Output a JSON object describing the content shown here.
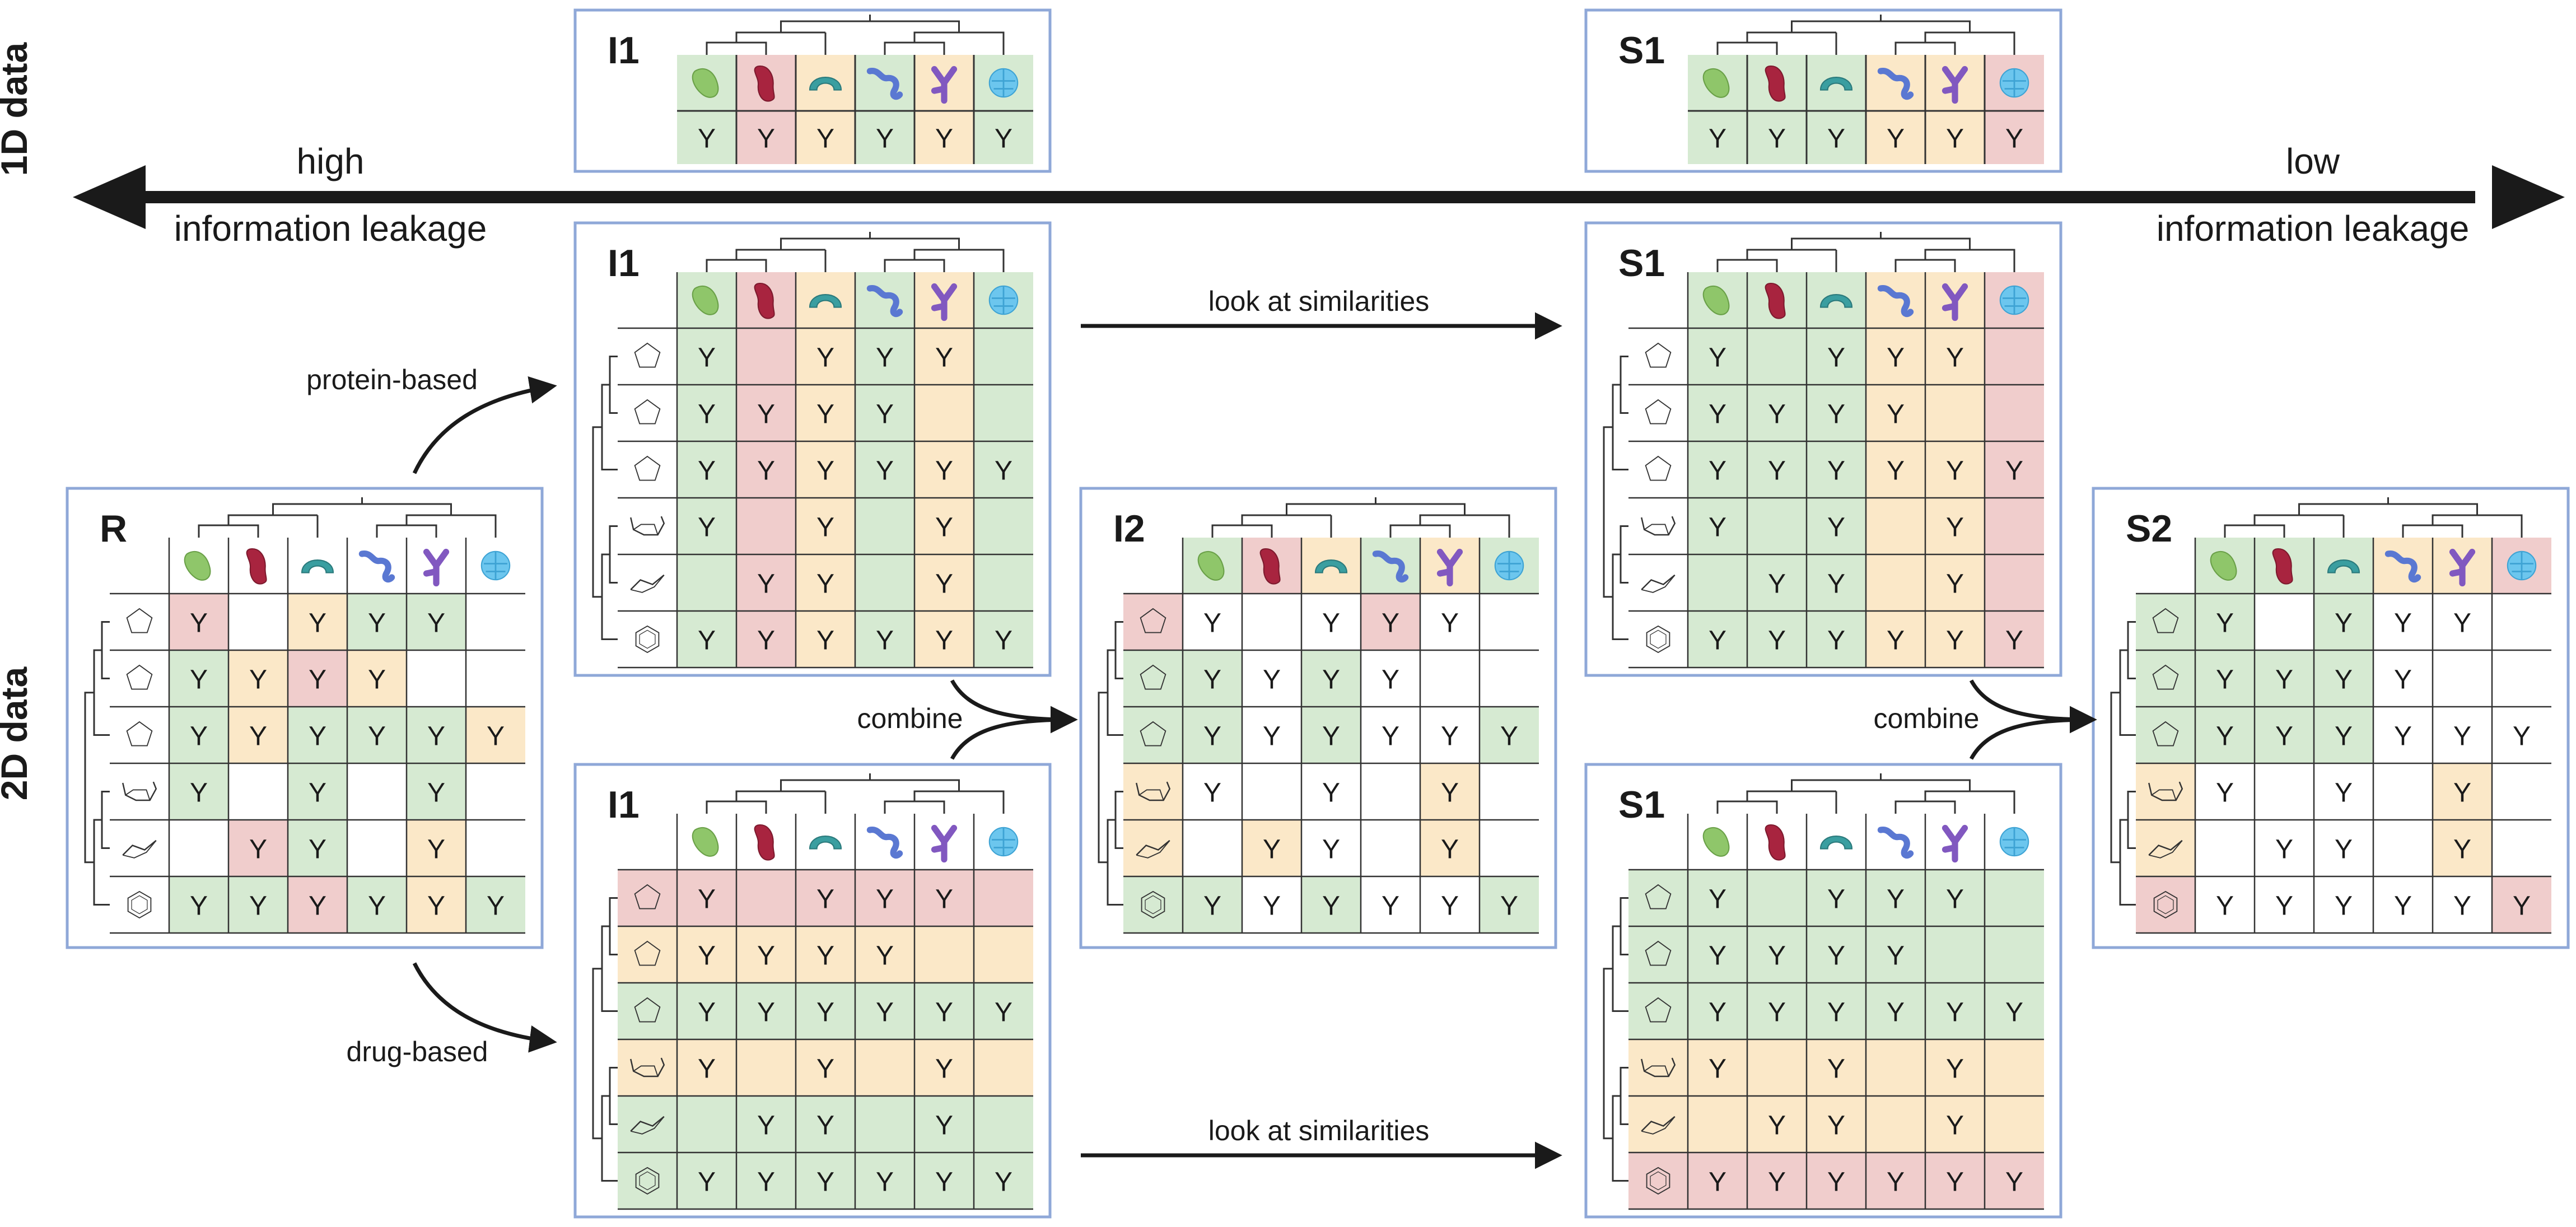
{
  "axis_labels": {
    "one_d": "1D data",
    "two_d": "2D data"
  },
  "leakage": {
    "high": "high",
    "low": "low",
    "high_desc": "information leakage",
    "low_desc": "information leakage"
  },
  "arrow_labels": {
    "protein_based": "protein-based",
    "drug_based": "drug-based",
    "similarities_top": "look at similarities",
    "similarities_bottom": "look at similarities",
    "combine_left": "combine",
    "combine_right": "combine"
  },
  "mark": "Y",
  "colors": {
    "G": "#d6ead2",
    "R": "#f0cdcc",
    "O": "#fbe8c8",
    "W": "#ffffff",
    "frame": "#8fa8d8",
    "arrow": "#1a1a1a"
  },
  "protein_icons": [
    "green-bean-protein-icon",
    "red-kidney-protein-icon",
    "teal-arc-protein-icon",
    "blue-chain-protein-icon",
    "purple-fork-protein-icon",
    "lightblue-globe-protein-icon"
  ],
  "drug_icons": [
    "cyclopentane-ring-icon",
    "cyclopentane-ring-icon",
    "cyclopentane-ring-icon",
    "chair-cyclohexane-icon",
    "flat-cyclohexane-icon",
    "benzene-ring-icon"
  ],
  "panels": [
    {
      "id": "one-d-i1",
      "label": "I1",
      "kind": "1d",
      "prot_colors": [
        "G",
        "R",
        "O",
        "G",
        "O",
        "G"
      ],
      "row_cells": [
        "Y",
        "Y",
        "Y",
        "Y",
        "Y",
        "Y"
      ]
    },
    {
      "id": "one-d-s1",
      "label": "S1",
      "kind": "1d",
      "prot_colors": [
        "G",
        "G",
        "G",
        "O",
        "O",
        "R"
      ],
      "row_cells": [
        "Y",
        "Y",
        "Y",
        "Y",
        "Y",
        "Y"
      ]
    },
    {
      "id": "two-d-r",
      "label": "R",
      "kind": "cell",
      "drug_colors": [],
      "prot_colors": [],
      "cells": [
        [
          "R",
          "W",
          "O",
          "G",
          "G",
          "W"
        ],
        [
          "G",
          "O",
          "R",
          "O",
          "W",
          "W"
        ],
        [
          "G",
          "O",
          "G",
          "G",
          "G",
          "O"
        ],
        [
          "G",
          "W",
          "G",
          "W",
          "G",
          "W"
        ],
        [
          "W",
          "R",
          "G",
          "W",
          "O",
          "W"
        ],
        [
          "G",
          "G",
          "R",
          "G",
          "O",
          "G"
        ]
      ],
      "marks": [
        [
          "Y",
          "",
          "Y",
          "Y",
          "Y",
          ""
        ],
        [
          "Y",
          "Y",
          "Y",
          "Y",
          "",
          ""
        ],
        [
          "Y",
          "Y",
          "Y",
          "Y",
          "Y",
          "Y"
        ],
        [
          "Y",
          "",
          "Y",
          "",
          "Y",
          ""
        ],
        [
          "",
          "Y",
          "Y",
          "",
          "Y",
          ""
        ],
        [
          "Y",
          "Y",
          "Y",
          "Y",
          "Y",
          "Y"
        ]
      ]
    },
    {
      "id": "two-d-i1-protein",
      "label": "I1",
      "kind": "column",
      "prot_colors": [
        "G",
        "R",
        "O",
        "G",
        "O",
        "G"
      ],
      "marks": [
        [
          "Y",
          "",
          "Y",
          "Y",
          "Y",
          ""
        ],
        [
          "Y",
          "Y",
          "Y",
          "Y",
          "",
          ""
        ],
        [
          "Y",
          "Y",
          "Y",
          "Y",
          "Y",
          "Y"
        ],
        [
          "Y",
          "",
          "Y",
          "",
          "Y",
          ""
        ],
        [
          "",
          "Y",
          "Y",
          "",
          "Y",
          ""
        ],
        [
          "Y",
          "Y",
          "Y",
          "Y",
          "Y",
          "Y"
        ]
      ]
    },
    {
      "id": "two-d-i1-drug",
      "label": "I1",
      "kind": "row",
      "drug_colors": [
        "R",
        "O",
        "G",
        "O",
        "G",
        "G"
      ],
      "marks": [
        [
          "Y",
          "",
          "Y",
          "Y",
          "Y",
          ""
        ],
        [
          "Y",
          "Y",
          "Y",
          "Y",
          "",
          ""
        ],
        [
          "Y",
          "Y",
          "Y",
          "Y",
          "Y",
          "Y"
        ],
        [
          "Y",
          "",
          "Y",
          "",
          "Y",
          ""
        ],
        [
          "",
          "Y",
          "Y",
          "",
          "Y",
          ""
        ],
        [
          "Y",
          "Y",
          "Y",
          "Y",
          "Y",
          "Y"
        ]
      ]
    },
    {
      "id": "two-d-i2",
      "label": "I2",
      "kind": "cell",
      "drug_colors": [
        "R",
        "G",
        "G",
        "O",
        "O",
        "G"
      ],
      "prot_colors": [
        "G",
        "R",
        "O",
        "G",
        "O",
        "G"
      ],
      "cells": [
        [
          "W",
          "W",
          "W",
          "R",
          "W",
          "W"
        ],
        [
          "G",
          "W",
          "G",
          "W",
          "W",
          "W"
        ],
        [
          "G",
          "W",
          "G",
          "W",
          "W",
          "G"
        ],
        [
          "W",
          "W",
          "W",
          "W",
          "O",
          "W"
        ],
        [
          "W",
          "O",
          "W",
          "W",
          "O",
          "W"
        ],
        [
          "G",
          "W",
          "G",
          "W",
          "W",
          "G"
        ]
      ],
      "marks": [
        [
          "Y",
          "",
          "Y",
          "Y",
          "Y",
          ""
        ],
        [
          "Y",
          "Y",
          "Y",
          "Y",
          "",
          ""
        ],
        [
          "Y",
          "Y",
          "Y",
          "Y",
          "Y",
          "Y"
        ],
        [
          "Y",
          "",
          "Y",
          "",
          "Y",
          ""
        ],
        [
          "",
          "Y",
          "Y",
          "",
          "Y",
          ""
        ],
        [
          "Y",
          "Y",
          "Y",
          "Y",
          "Y",
          "Y"
        ]
      ]
    },
    {
      "id": "two-d-s1-protein",
      "label": "S1",
      "kind": "column",
      "prot_colors": [
        "G",
        "G",
        "G",
        "O",
        "O",
        "R"
      ],
      "marks": [
        [
          "Y",
          "",
          "Y",
          "Y",
          "Y",
          ""
        ],
        [
          "Y",
          "Y",
          "Y",
          "Y",
          "",
          ""
        ],
        [
          "Y",
          "Y",
          "Y",
          "Y",
          "Y",
          "Y"
        ],
        [
          "Y",
          "",
          "Y",
          "",
          "Y",
          ""
        ],
        [
          "",
          "Y",
          "Y",
          "",
          "Y",
          ""
        ],
        [
          "Y",
          "Y",
          "Y",
          "Y",
          "Y",
          "Y"
        ]
      ]
    },
    {
      "id": "two-d-s1-drug",
      "label": "S1",
      "kind": "row",
      "drug_colors": [
        "G",
        "G",
        "G",
        "O",
        "O",
        "R"
      ],
      "marks": [
        [
          "Y",
          "",
          "Y",
          "Y",
          "Y",
          ""
        ],
        [
          "Y",
          "Y",
          "Y",
          "Y",
          "",
          ""
        ],
        [
          "Y",
          "Y",
          "Y",
          "Y",
          "Y",
          "Y"
        ],
        [
          "Y",
          "",
          "Y",
          "",
          "Y",
          ""
        ],
        [
          "",
          "Y",
          "Y",
          "",
          "Y",
          ""
        ],
        [
          "Y",
          "Y",
          "Y",
          "Y",
          "Y",
          "Y"
        ]
      ]
    },
    {
      "id": "two-d-s2",
      "label": "S2",
      "kind": "cell",
      "drug_colors": [
        "G",
        "G",
        "G",
        "O",
        "O",
        "R"
      ],
      "prot_colors": [
        "G",
        "G",
        "G",
        "O",
        "O",
        "R"
      ],
      "cells": [
        [
          "G",
          "W",
          "G",
          "W",
          "W",
          "W"
        ],
        [
          "G",
          "G",
          "G",
          "W",
          "W",
          "W"
        ],
        [
          "G",
          "G",
          "G",
          "W",
          "W",
          "W"
        ],
        [
          "W",
          "W",
          "W",
          "W",
          "O",
          "W"
        ],
        [
          "W",
          "W",
          "W",
          "W",
          "O",
          "W"
        ],
        [
          "W",
          "W",
          "W",
          "W",
          "W",
          "R"
        ]
      ],
      "marks": [
        [
          "Y",
          "",
          "Y",
          "Y",
          "Y",
          ""
        ],
        [
          "Y",
          "Y",
          "Y",
          "Y",
          "",
          ""
        ],
        [
          "Y",
          "Y",
          "Y",
          "Y",
          "Y",
          "Y"
        ],
        [
          "Y",
          "",
          "Y",
          "",
          "Y",
          ""
        ],
        [
          "",
          "Y",
          "Y",
          "",
          "Y",
          ""
        ],
        [
          "Y",
          "Y",
          "Y",
          "Y",
          "Y",
          "Y"
        ]
      ]
    }
  ]
}
